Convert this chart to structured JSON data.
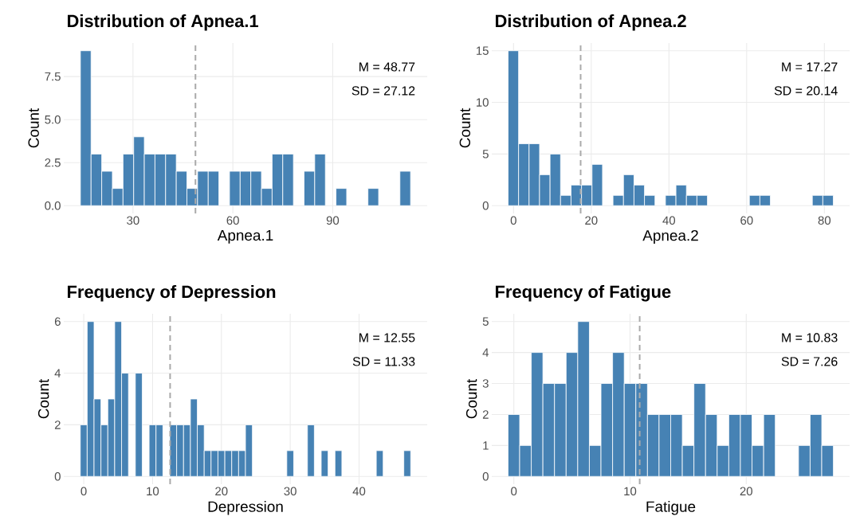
{
  "chart_data": [
    {
      "type": "histogram",
      "title": "Distribution of Apnea.1",
      "xlabel": "Apnea.1",
      "ylabel": "Count",
      "color": "#4682b4",
      "bins": [
        14.2,
        17.4,
        20.6,
        23.8,
        27,
        30.2,
        33.4,
        36.6,
        39.8,
        43,
        46.2,
        49.4,
        52.6,
        55.8,
        59,
        62.2,
        65.4,
        68.6,
        71.8,
        75,
        78.2,
        81.4,
        84.6,
        87.8,
        91,
        94.2,
        97.4,
        100.6,
        103.8,
        107,
        110.2,
        113.4
      ],
      "values": [
        9,
        3,
        2,
        1,
        3,
        4,
        3,
        3,
        3,
        2,
        1,
        2,
        2,
        0,
        2,
        2,
        2,
        1,
        3,
        3,
        0,
        2,
        3,
        0,
        1,
        0,
        0,
        1,
        0,
        0,
        2
      ],
      "xlim": [
        9.2,
        118.4
      ],
      "xticks": [
        30,
        60,
        90
      ],
      "ylim": [
        -0.45,
        9.45
      ],
      "yticks": [
        {
          "value": 0,
          "label": "0.0"
        },
        {
          "value": 2.5,
          "label": "2.5"
        },
        {
          "value": 5,
          "label": "5.0"
        },
        {
          "value": 7.5,
          "label": "7.5"
        }
      ],
      "grid": true,
      "ref_lines": [
        {
          "axis": "x",
          "value": 48.77,
          "color": "#aaaaaa",
          "line_style": "dashed"
        }
      ],
      "annotations": [
        "M = 48.77",
        "SD = 27.12"
      ]
    },
    {
      "type": "histogram",
      "title": "Distribution of Apnea.2",
      "xlabel": "Apnea.2",
      "ylabel": "Count",
      "color": "#4682b4",
      "bins": [
        -1.4,
        1.3,
        4,
        6.7,
        9.4,
        12.1,
        14.8,
        17.5,
        20.2,
        22.9,
        25.6,
        28.3,
        31,
        33.7,
        36.4,
        39.1,
        41.8,
        44.5,
        47.2,
        49.9,
        52.6,
        55.3,
        58,
        60.7,
        63.4,
        66.1,
        68.8,
        71.5,
        74.2,
        76.9,
        79.6,
        82.3
      ],
      "values": [
        15,
        6,
        6,
        3,
        5,
        1,
        2,
        2,
        4,
        0,
        1,
        3,
        2,
        1,
        0,
        1,
        2,
        1,
        1,
        0,
        0,
        0,
        0,
        1,
        1,
        0,
        0,
        0,
        0,
        1,
        1
      ],
      "xlim": [
        -5.6,
        86.5
      ],
      "xticks": [
        0,
        20,
        40,
        60,
        80
      ],
      "ylim": [
        -0.75,
        15.75
      ],
      "yticks": [
        0,
        5,
        10,
        15
      ],
      "grid": true,
      "ref_lines": [
        {
          "axis": "x",
          "value": 17.27,
          "color": "#aaaaaa",
          "line_style": "dashed"
        }
      ],
      "annotations": [
        "M = 17.27",
        "SD = 20.14"
      ]
    },
    {
      "type": "histogram",
      "title": "Frequency of Depression",
      "xlabel": "Depression",
      "ylabel": "Count",
      "color": "#4682b4",
      "bins": [
        -0.5,
        0.5,
        1.5,
        2.5,
        3.5,
        4.5,
        5.5,
        6.5,
        7.5,
        8.5,
        9.5,
        10.5,
        11.5,
        12.5,
        13.5,
        14.5,
        15.5,
        16.5,
        17.5,
        18.5,
        19.5,
        20.5,
        21.5,
        22.5,
        23.5,
        24.5,
        25.5,
        26.5,
        27.5,
        28.5,
        29.5,
        30.5,
        31.5,
        32.5,
        33.5,
        34.5,
        35.5,
        36.5,
        37.5,
        38.5,
        39.5,
        40.5,
        41.5,
        42.5,
        43.5,
        44.5,
        45.5,
        46.5,
        47.5
      ],
      "values": [
        2,
        6,
        3,
        2,
        3,
        6,
        4,
        0,
        4,
        0,
        2,
        2,
        0,
        2,
        2,
        2,
        3,
        2,
        1,
        1,
        1,
        1,
        1,
        1,
        2,
        0,
        0,
        0,
        0,
        0,
        1,
        0,
        0,
        2,
        0,
        1,
        0,
        1,
        0,
        0,
        0,
        0,
        0,
        1,
        0,
        0,
        0,
        1
      ],
      "xlim": [
        -2.9,
        49.9
      ],
      "xticks": [
        0,
        10,
        20,
        30,
        40
      ],
      "ylim": [
        -0.3,
        6.3
      ],
      "yticks": [
        0,
        2,
        4,
        6
      ],
      "grid": true,
      "ref_lines": [
        {
          "axis": "x",
          "value": 12.55,
          "color": "#aaaaaa",
          "line_style": "dashed"
        }
      ],
      "annotations": [
        "M = 12.55",
        "SD = 11.33"
      ]
    },
    {
      "type": "histogram",
      "title": "Frequency of Fatigue",
      "xlabel": "Fatigue",
      "ylabel": "Count",
      "color": "#4682b4",
      "bins": [
        -0.5,
        0.5,
        1.5,
        2.5,
        3.5,
        4.5,
        5.5,
        6.5,
        7.5,
        8.5,
        9.5,
        10.5,
        11.5,
        12.5,
        13.5,
        14.5,
        15.5,
        16.5,
        17.5,
        18.5,
        19.5,
        20.5,
        21.5,
        22.5,
        23.5,
        24.5,
        25.5,
        26.5,
        27.5
      ],
      "values": [
        2,
        1,
        4,
        3,
        3,
        4,
        5,
        1,
        3,
        4,
        3,
        3,
        2,
        2,
        2,
        1,
        3,
        2,
        1,
        2,
        2,
        1,
        2,
        0,
        0,
        1,
        2,
        1
      ],
      "xlim": [
        -1.9,
        28.9
      ],
      "xticks": [
        0,
        10,
        20
      ],
      "ylim": [
        -0.25,
        5.25
      ],
      "yticks": [
        0,
        1,
        2,
        3,
        4,
        5
      ],
      "grid": true,
      "ref_lines": [
        {
          "axis": "x",
          "value": 10.83,
          "color": "#aaaaaa",
          "line_style": "dashed"
        }
      ],
      "annotations": [
        "M = 10.83",
        "SD = 7.26"
      ]
    }
  ]
}
